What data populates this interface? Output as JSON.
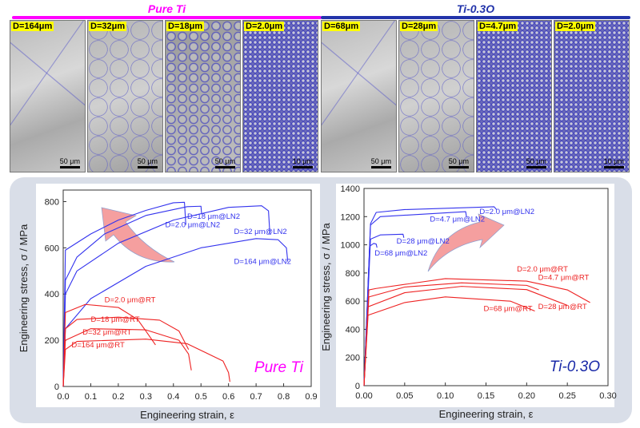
{
  "groups": [
    {
      "title": "Pure Ti",
      "color": "#ff00ff",
      "images": [
        {
          "label": "D=164μm",
          "scale": "50 μm",
          "type": "coarse"
        },
        {
          "label": "D=32μm",
          "scale": "50 μm",
          "type": "med"
        },
        {
          "label": "D=18μm",
          "scale": "50 μm",
          "type": "fine"
        },
        {
          "label": "D=2.0μm",
          "scale": "10 μm",
          "type": "vfine"
        }
      ]
    },
    {
      "title": "Ti-0.3O",
      "color": "#2233aa",
      "images": [
        {
          "label": "D=68μm",
          "scale": "50 μm",
          "type": "coarse"
        },
        {
          "label": "D=28μm",
          "scale": "50 μm",
          "type": "med"
        },
        {
          "label": "D=4.7μm",
          "scale": "50 μm",
          "type": "vfine"
        },
        {
          "label": "D=2.0μm",
          "scale": "10 μm",
          "type": "vfine"
        }
      ]
    }
  ],
  "chart_data": [
    {
      "type": "line",
      "title": "Pure Ti",
      "title_color": "#ff00ff",
      "xlabel": "Engineering strain, ε",
      "ylabel": "Engineering stress, σ / MPa",
      "xlim": [
        0,
        0.9
      ],
      "ylim": [
        0,
        850
      ],
      "xticks": [
        0,
        0.1,
        0.2,
        0.3,
        0.4,
        0.5,
        0.6,
        0.7,
        0.8,
        0.9
      ],
      "xtick_labels": [
        "0.0",
        "0.1",
        "0.2",
        "0.3",
        "0.4",
        "0.5",
        "0.6",
        "0.7",
        "0.8",
        "0.9"
      ],
      "yticks": [
        0,
        200,
        400,
        600,
        800
      ],
      "ytick_labels": [
        "0",
        "200",
        "400",
        "600",
        "800"
      ],
      "series": [
        {
          "name": "D=2.0 μm@LN2",
          "color": "#3333ee",
          "label_at": [
            0.37,
            690
          ],
          "points": [
            [
              0,
              0
            ],
            [
              0.008,
              590
            ],
            [
              0.1,
              660
            ],
            [
              0.2,
              720
            ],
            [
              0.3,
              762
            ],
            [
              0.4,
              795
            ],
            [
              0.44,
              797
            ],
            [
              0.445,
              700
            ]
          ]
        },
        {
          "name": "D=18 μm@LN2",
          "color": "#3333ee",
          "label_at": [
            0.45,
            725
          ],
          "points": [
            [
              0,
              0
            ],
            [
              0.008,
              460
            ],
            [
              0.05,
              560
            ],
            [
              0.15,
              660
            ],
            [
              0.3,
              740
            ],
            [
              0.45,
              778
            ],
            [
              0.5,
              780
            ],
            [
              0.502,
              750
            ]
          ]
        },
        {
          "name": "D=32 μm@LN2",
          "color": "#3333ee",
          "label_at": [
            0.62,
            660
          ],
          "points": [
            [
              0,
              0
            ],
            [
              0.008,
              400
            ],
            [
              0.05,
              500
            ],
            [
              0.2,
              620
            ],
            [
              0.4,
              720
            ],
            [
              0.6,
              775
            ],
            [
              0.72,
              782
            ],
            [
              0.745,
              760
            ],
            [
              0.75,
              660
            ]
          ]
        },
        {
          "name": "D=164 μm@LN2",
          "color": "#3333ee",
          "label_at": [
            0.62,
            530
          ],
          "points": [
            [
              0,
              0
            ],
            [
              0.008,
              250
            ],
            [
              0.1,
              380
            ],
            [
              0.3,
              520
            ],
            [
              0.5,
              600
            ],
            [
              0.7,
              640
            ],
            [
              0.78,
              635
            ],
            [
              0.81,
              600
            ],
            [
              0.815,
              540
            ]
          ]
        },
        {
          "name": "D=2.0 μm@RT",
          "color": "#ee2222",
          "label_at": [
            0.15,
            365
          ],
          "points": [
            [
              0,
              0
            ],
            [
              0.008,
              320
            ],
            [
              0.08,
              355
            ],
            [
              0.2,
              342
            ],
            [
              0.27,
              290
            ],
            [
              0.3,
              240
            ],
            [
              0.335,
              180
            ]
          ]
        },
        {
          "name": "D=18 μm@RT",
          "color": "#ee2222",
          "label_at": [
            0.1,
            280
          ],
          "points": [
            [
              0,
              0
            ],
            [
              0.008,
              250
            ],
            [
              0.05,
              290
            ],
            [
              0.2,
              300
            ],
            [
              0.35,
              287
            ],
            [
              0.42,
              240
            ],
            [
              0.455,
              160
            ]
          ]
        },
        {
          "name": "D=32 μm@RT",
          "color": "#ee2222",
          "label_at": [
            0.07,
            225
          ],
          "points": [
            [
              0,
              0
            ],
            [
              0.008,
              200
            ],
            [
              0.1,
              250
            ],
            [
              0.3,
              245
            ],
            [
              0.42,
              200
            ],
            [
              0.455,
              140
            ],
            [
              0.465,
              70
            ]
          ]
        },
        {
          "name": "D=164 μm@RT",
          "color": "#ee2222",
          "label_at": [
            0.03,
            170
          ],
          "points": [
            [
              0,
              0
            ],
            [
              0.008,
              160
            ],
            [
              0.05,
              195
            ],
            [
              0.3,
              205
            ],
            [
              0.45,
              185
            ],
            [
              0.58,
              110
            ],
            [
              0.6,
              60
            ],
            [
              0.605,
              20
            ]
          ]
        }
      ]
    },
    {
      "type": "line",
      "title": "Ti-0.3O",
      "title_color": "#1a2aa8",
      "xlabel": "Engineering strain, ε",
      "ylabel": "Engineering stress, σ / MPa",
      "xlim": [
        0,
        0.3
      ],
      "ylim": [
        0,
        1400
      ],
      "xticks": [
        0,
        0.05,
        0.1,
        0.15,
        0.2,
        0.25,
        0.3
      ],
      "xtick_labels": [
        "0.00",
        "0.05",
        "0.10",
        "0.15",
        "0.20",
        "0.25",
        "0.30"
      ],
      "yticks": [
        0,
        200,
        400,
        600,
        800,
        1000,
        1200,
        1400
      ],
      "ytick_labels": [
        "0",
        "200",
        "400",
        "600",
        "800",
        "1000",
        "1200",
        "1400"
      ],
      "series": [
        {
          "name": "D=2.0 μm@LN2",
          "color": "#3333ee",
          "label_at": [
            0.142,
            1220
          ],
          "points": [
            [
              0,
              0
            ],
            [
              0.008,
              1150
            ],
            [
              0.015,
              1230
            ],
            [
              0.05,
              1250
            ],
            [
              0.16,
              1270
            ],
            [
              0.163,
              1250
            ]
          ]
        },
        {
          "name": "D=4.7 μm@LN2",
          "color": "#3333ee",
          "label_at": [
            0.081,
            1165
          ],
          "points": [
            [
              0,
              0
            ],
            [
              0.008,
              1140
            ],
            [
              0.02,
              1200
            ],
            [
              0.125,
              1235
            ],
            [
              0.126,
              1200
            ]
          ]
        },
        {
          "name": "D=28 μm@LN2",
          "color": "#3333ee",
          "label_at": [
            0.04,
            1010
          ],
          "points": [
            [
              0,
              0
            ],
            [
              0.008,
              1040
            ],
            [
              0.02,
              1070
            ],
            [
              0.048,
              1075
            ],
            [
              0.049,
              1050
            ]
          ]
        },
        {
          "name": "D=68 μm@LN2",
          "color": "#3333ee",
          "label_at": [
            0.013,
            925
          ],
          "points": [
            [
              0,
              0
            ],
            [
              0.007,
              990
            ],
            [
              0.012,
              1010
            ],
            [
              0.015,
              1005
            ],
            [
              0.016,
              980
            ]
          ]
        },
        {
          "name": "D=2.0 μm@RT",
          "color": "#ee2222",
          "label_at": [
            0.188,
            810
          ],
          "points": [
            [
              0,
              0
            ],
            [
              0.006,
              680
            ],
            [
              0.015,
              690
            ],
            [
              0.1,
              760
            ],
            [
              0.2,
              742
            ],
            [
              0.25,
              680
            ],
            [
              0.278,
              590
            ]
          ]
        },
        {
          "name": "D=4.7 μm@RT",
          "color": "#ee2222",
          "label_at": [
            0.214,
            750
          ],
          "points": [
            [
              0,
              0
            ],
            [
              0.006,
              630
            ],
            [
              0.05,
              700
            ],
            [
              0.12,
              730
            ],
            [
              0.2,
              712
            ],
            [
              0.215,
              680
            ]
          ]
        },
        {
          "name": "D=28 μm@RT",
          "color": "#ee2222",
          "label_at": [
            0.214,
            545
          ],
          "points": [
            [
              0,
              0
            ],
            [
              0.005,
              560
            ],
            [
              0.05,
              660
            ],
            [
              0.12,
              705
            ],
            [
              0.2,
              682
            ],
            [
              0.25,
              570
            ]
          ]
        },
        {
          "name": "D=68 μm@RT",
          "color": "#ee2222",
          "label_at": [
            0.147,
            530
          ],
          "points": [
            [
              0,
              0
            ],
            [
              0.005,
              500
            ],
            [
              0.05,
              590
            ],
            [
              0.1,
              630
            ],
            [
              0.18,
              600
            ],
            [
              0.21,
              530
            ]
          ]
        }
      ]
    }
  ]
}
